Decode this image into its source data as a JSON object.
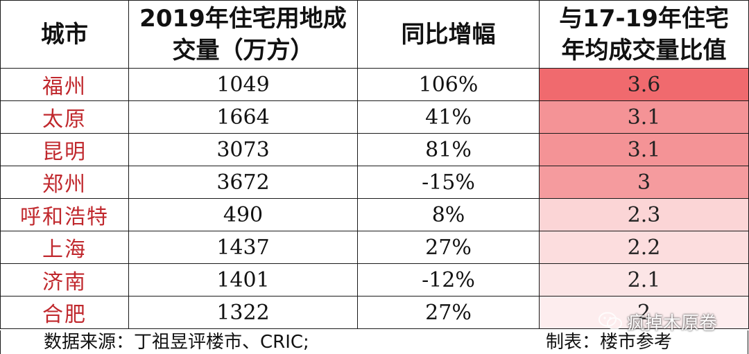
{
  "table": {
    "headers": {
      "city": "城市",
      "volume_line1": "2019年住宅用地成",
      "volume_line2": "交量（万方）",
      "yoy": "同比增幅",
      "ratio_line1": "与17-19年住宅",
      "ratio_line2": "年均成交量比值"
    },
    "rows": [
      {
        "city": "福州",
        "volume": "1049",
        "yoy": "106%",
        "ratio": "3.6",
        "ratio_value": 3.6
      },
      {
        "city": "太原",
        "volume": "1664",
        "yoy": "41%",
        "ratio": "3.1",
        "ratio_value": 3.1
      },
      {
        "city": "昆明",
        "volume": "3073",
        "yoy": "81%",
        "ratio": "3.1",
        "ratio_value": 3.1
      },
      {
        "city": "郑州",
        "volume": "3672",
        "yoy": "-15%",
        "ratio": "3",
        "ratio_value": 3.0
      },
      {
        "city": "呼和浩特",
        "volume": "490",
        "yoy": "8%",
        "ratio": "2.3",
        "ratio_value": 2.3
      },
      {
        "city": "上海",
        "volume": "1437",
        "yoy": "27%",
        "ratio": "2.2",
        "ratio_value": 2.2
      },
      {
        "city": "济南",
        "volume": "1401",
        "yoy": "-12%",
        "ratio": "2.1",
        "ratio_value": 2.1
      },
      {
        "city": "合肥",
        "volume": "1322",
        "yoy": "27%",
        "ratio": "2",
        "ratio_value": 2.0
      }
    ],
    "heat_colors": {
      "high": "#f06a6e",
      "low": "#ffffff"
    },
    "city_color": "#c0282d"
  },
  "footer": {
    "source": "数据来源：丁祖昱评楼市、CRIC;",
    "maker": "制表：楼市参考"
  },
  "watermark": {
    "text": "疯掉木原卷",
    "icon": "wechat-logo-icon"
  }
}
